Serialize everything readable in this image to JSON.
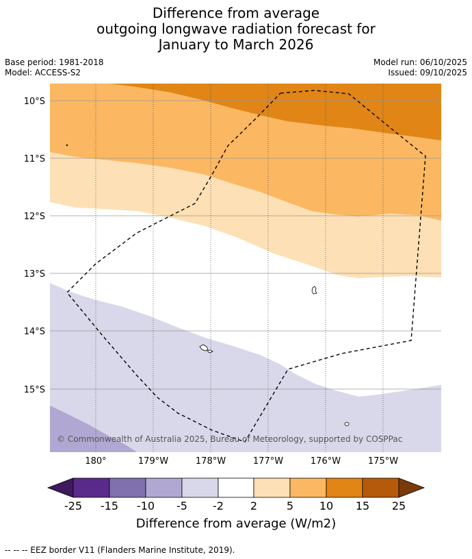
{
  "title": {
    "line1": "Difference from average",
    "line2": "outgoing longwave radiation forecast for",
    "line3": "January to March 2026"
  },
  "meta_left": {
    "base_period": "Base period: 1981-2018",
    "model": "Model: ACCESS-S2"
  },
  "meta_right": {
    "model_run": "Model run: 06/10/2025",
    "issued": "Issued: 09/10/2025"
  },
  "map": {
    "lat_labels": [
      "10°S",
      "11°S",
      "12°S",
      "13°S",
      "14°S",
      "15°S"
    ],
    "lon_labels": [
      "180°",
      "179°W",
      "178°W",
      "177°W",
      "176°W",
      "175°W"
    ],
    "copyright": "© Commonwealth of Australia 2025, Bureau of Meteorology, supported by COSPPac"
  },
  "colorbar": {
    "ticks": [
      "-25",
      "-15",
      "-10",
      "-5",
      "-2",
      "2",
      "5",
      "10",
      "15",
      "25"
    ],
    "colors": [
      "#3f1a5e",
      "#5a2a8a",
      "#8070ad",
      "#b0a8d2",
      "#d8d8ea",
      "#ffffff",
      "#fde0b5",
      "#fbb761",
      "#e08516",
      "#b45a0a",
      "#7a3a0a"
    ],
    "label": "Difference from average (W/m2)"
  },
  "footnote": "--  --  -- EEZ border V11 (Flanders Marine Institute, 2019)."
}
